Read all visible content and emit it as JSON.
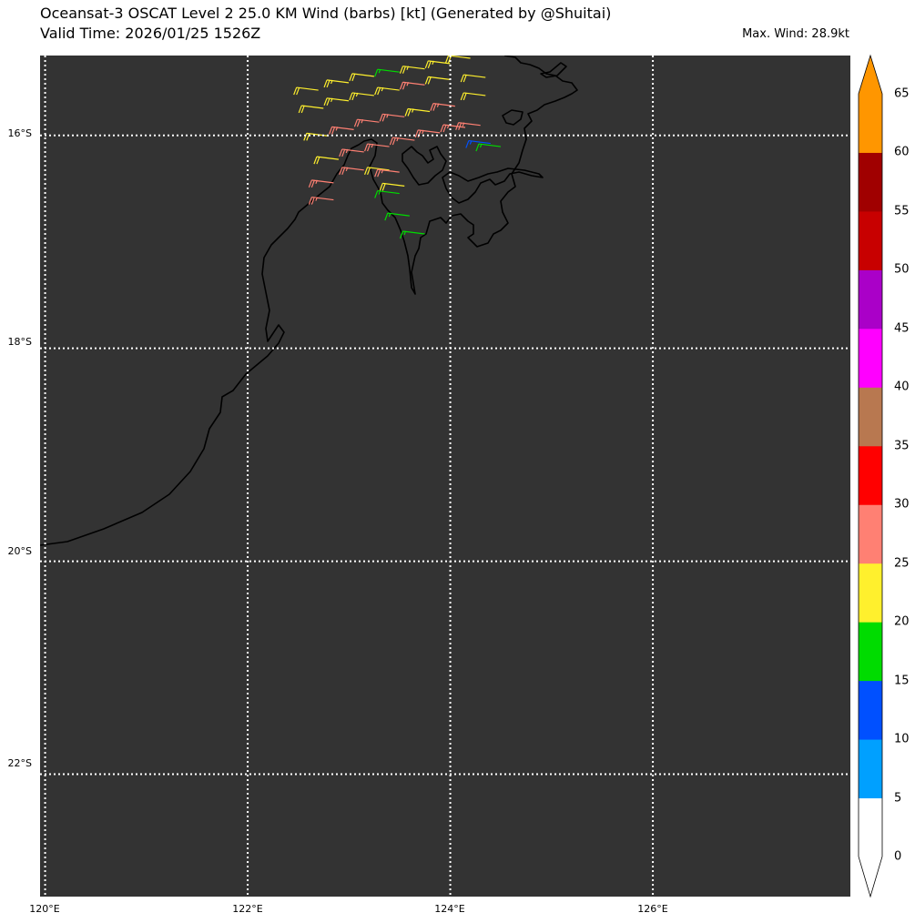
{
  "header": {
    "title_line1": "Oceansat-3 OSCAT Level 2 25.0 KM Wind (barbs) [kt] (Generated by @Shuitai)",
    "title_line2": "Valid Time: 2026/01/25 1526Z",
    "max_wind": "Max. Wind: 28.9kt"
  },
  "map": {
    "background_color": "#333333",
    "gridline_color": "#ffffff",
    "coastline_color": "#000000",
    "lat_labels": [
      "16°S",
      "18°S",
      "20°S",
      "22°S"
    ],
    "lon_labels": [
      "120°E",
      "122°E",
      "124°E",
      "126°E"
    ],
    "extent": {
      "lon_min": 119.95,
      "lon_max": 127.95,
      "lat_top": 15.25,
      "lat_bottom": 23.15
    }
  },
  "colorbar": {
    "ticks": [
      "0",
      "5",
      "10",
      "15",
      "20",
      "25",
      "30",
      "35",
      "40",
      "45",
      "50",
      "55",
      "60",
      "65"
    ],
    "colors": [
      "#ffffff",
      "#00a0ff",
      "#0050ff",
      "#00dc00",
      "#fff02d",
      "#ff8073",
      "#ff0000",
      "#b87850",
      "#ff00ff",
      "#aa00c8",
      "#c80000",
      "#a00000",
      "#ff9600"
    ],
    "extend": "both"
  },
  "chart_data": {
    "type": "scatter",
    "title": "Oceansat-3 OSCAT Level 2 25.0 KM Wind (barbs) [kt] (Generated by @Shuitai)",
    "xlabel": "",
    "ylabel": "",
    "units": "kt",
    "x_ticks": [
      "120°E",
      "122°E",
      "124°E",
      "126°E"
    ],
    "y_ticks": [
      "16°S",
      "18°S",
      "20°S",
      "22°S"
    ],
    "barbs": [
      {
        "lon": 122.5,
        "lat": -15.55,
        "speed": 22
      },
      {
        "lon": 122.8,
        "lat": -15.48,
        "speed": 23
      },
      {
        "lon": 123.05,
        "lat": -15.42,
        "speed": 22
      },
      {
        "lon": 123.3,
        "lat": -15.38,
        "speed": 17
      },
      {
        "lon": 123.55,
        "lat": -15.35,
        "speed": 23
      },
      {
        "lon": 123.8,
        "lat": -15.3,
        "speed": 24
      },
      {
        "lon": 124.0,
        "lat": -15.25,
        "speed": 22
      },
      {
        "lon": 124.15,
        "lat": -15.43,
        "speed": 22
      },
      {
        "lon": 122.55,
        "lat": -15.72,
        "speed": 22
      },
      {
        "lon": 122.8,
        "lat": -15.65,
        "speed": 23
      },
      {
        "lon": 123.05,
        "lat": -15.6,
        "speed": 23
      },
      {
        "lon": 123.3,
        "lat": -15.55,
        "speed": 23
      },
      {
        "lon": 123.55,
        "lat": -15.5,
        "speed": 26
      },
      {
        "lon": 123.8,
        "lat": -15.45,
        "speed": 22
      },
      {
        "lon": 124.15,
        "lat": -15.6,
        "speed": 22
      },
      {
        "lon": 122.6,
        "lat": -15.98,
        "speed": 22
      },
      {
        "lon": 122.85,
        "lat": -15.92,
        "speed": 27
      },
      {
        "lon": 123.1,
        "lat": -15.85,
        "speed": 27
      },
      {
        "lon": 123.35,
        "lat": -15.8,
        "speed": 26
      },
      {
        "lon": 123.6,
        "lat": -15.75,
        "speed": 23
      },
      {
        "lon": 123.85,
        "lat": -15.7,
        "speed": 26
      },
      {
        "lon": 124.1,
        "lat": -15.88,
        "speed": 27
      },
      {
        "lon": 122.7,
        "lat": -16.2,
        "speed": 22
      },
      {
        "lon": 122.95,
        "lat": -16.13,
        "speed": 27
      },
      {
        "lon": 123.2,
        "lat": -16.08,
        "speed": 27
      },
      {
        "lon": 123.45,
        "lat": -16.02,
        "speed": 27
      },
      {
        "lon": 123.7,
        "lat": -15.95,
        "speed": 27
      },
      {
        "lon": 123.95,
        "lat": -15.9,
        "speed": 26
      },
      {
        "lon": 124.2,
        "lat": -16.05,
        "speed": 13
      },
      {
        "lon": 124.3,
        "lat": -16.08,
        "speed": 17
      },
      {
        "lon": 122.65,
        "lat": -16.42,
        "speed": 26
      },
      {
        "lon": 122.95,
        "lat": -16.3,
        "speed": 27
      },
      {
        "lon": 123.2,
        "lat": -16.3,
        "speed": 22
      },
      {
        "lon": 123.3,
        "lat": -16.32,
        "speed": 26
      },
      {
        "lon": 123.35,
        "lat": -16.45,
        "speed": 22
      },
      {
        "lon": 122.65,
        "lat": -16.58,
        "speed": 27
      },
      {
        "lon": 123.3,
        "lat": -16.52,
        "speed": 17
      },
      {
        "lon": 123.4,
        "lat": -16.73,
        "speed": 17
      },
      {
        "lon": 123.55,
        "lat": -16.9,
        "speed": 17
      }
    ]
  }
}
